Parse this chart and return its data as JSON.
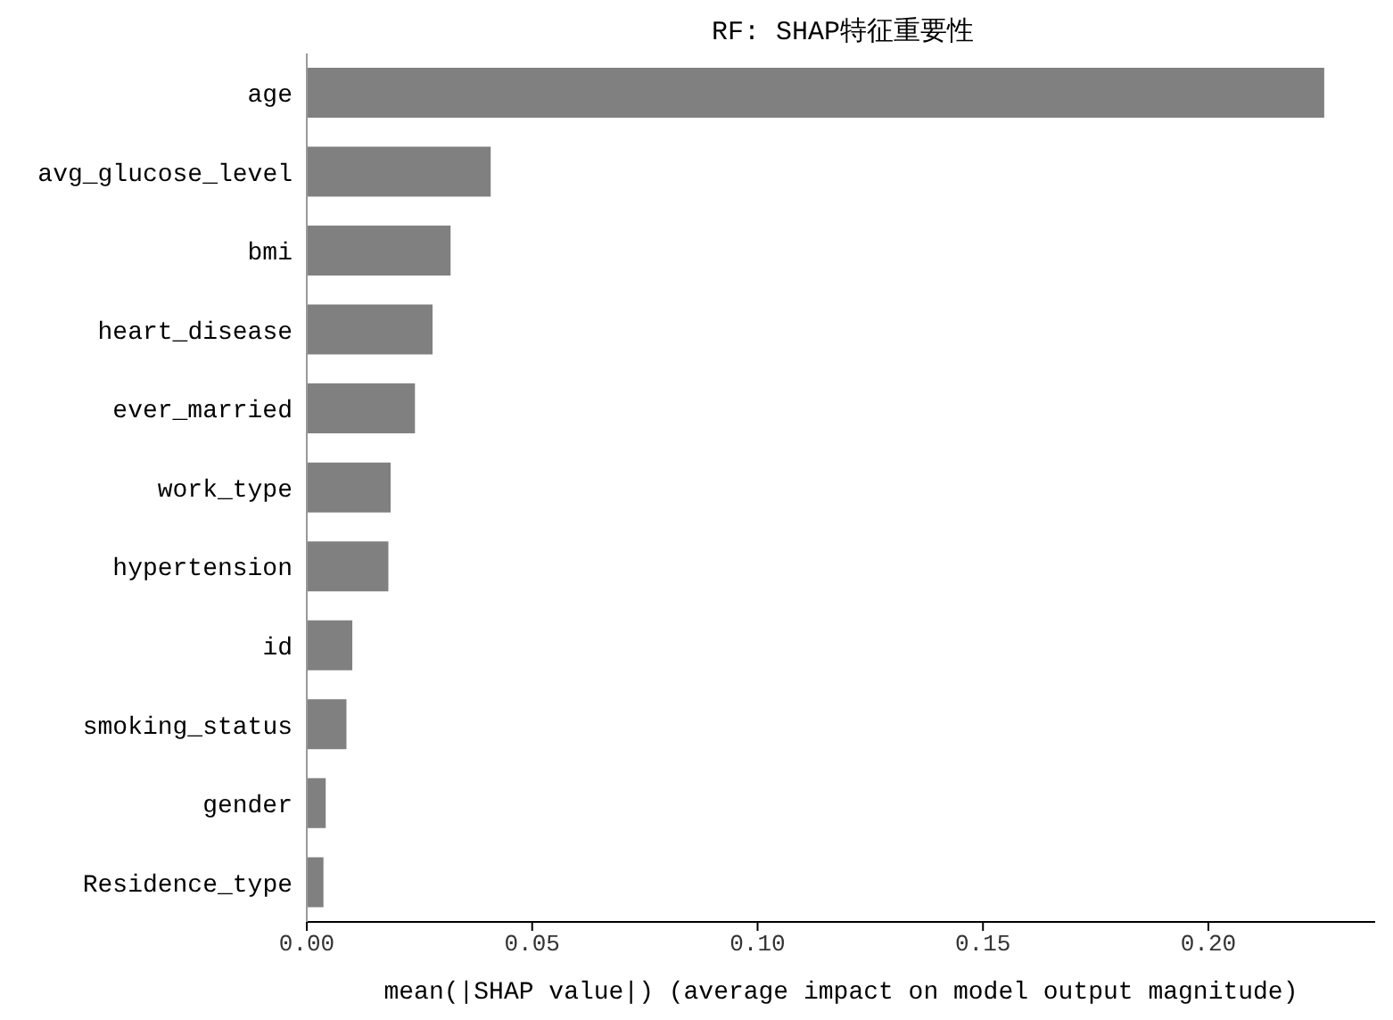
{
  "chart_data": {
    "type": "bar",
    "orientation": "horizontal",
    "title": "RF: SHAP特征重要性",
    "xlabel": "mean(|SHAP value|) (average impact on model output magnitude)",
    "categories": [
      "age",
      "avg_glucose_level",
      "bmi",
      "heart_disease",
      "ever_married",
      "work_type",
      "hypertension",
      "id",
      "smoking_status",
      "gender",
      "Residence_type"
    ],
    "values": [
      0.2257,
      0.0408,
      0.0319,
      0.0279,
      0.024,
      0.0186,
      0.0181,
      0.0101,
      0.0088,
      0.0042,
      0.0037
    ],
    "color": "#808080",
    "xlim": [
      0,
      0.237
    ],
    "xticks": [
      {
        "value": 0,
        "label": "0.00"
      },
      {
        "value": 0.05,
        "label": "0.05"
      },
      {
        "value": 0.1,
        "label": "0.10"
      },
      {
        "value": 0.15,
        "label": "0.15"
      },
      {
        "value": 0.2,
        "label": "0.20"
      }
    ],
    "grid": false,
    "legend": false
  }
}
